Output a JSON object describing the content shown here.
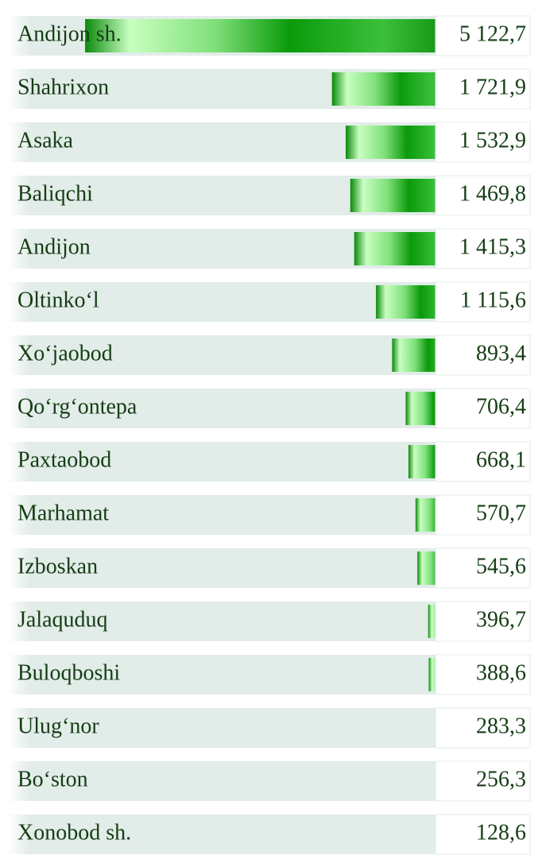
{
  "chart_data": {
    "type": "bar",
    "orientation": "horizontal",
    "categories": [
      "Andijon sh.",
      "Shahrixon",
      "Asaka",
      "Baliqchi",
      "Andijon",
      "Oltinko‘l",
      "Xo‘jaobod",
      "Qo‘rg‘ontepa",
      "Paxtaobod",
      "Marhamat",
      "Izboskan",
      "Jalaquduq",
      "Buloqboshi",
      "Ulug‘nor",
      "Bo‘ston",
      "Xonobod sh."
    ],
    "values": [
      5122.7,
      1721.9,
      1532.9,
      1469.8,
      1415.3,
      1115.6,
      893.4,
      706.4,
      668.1,
      570.7,
      545.6,
      396.7,
      388.6,
      283.3,
      256.3,
      128.6
    ],
    "value_labels": [
      "5 122,7",
      "1 721,9",
      "1 532,9",
      "1 469,8",
      "1 415,3",
      "1 115,6",
      "893,4",
      "706,4",
      "668,1",
      "570,7",
      "545,6",
      "396,7",
      "388,6",
      "283,3",
      "256,3",
      "128,6"
    ],
    "color": "#0a8a0a",
    "xlim": [
      0,
      5200
    ]
  }
}
